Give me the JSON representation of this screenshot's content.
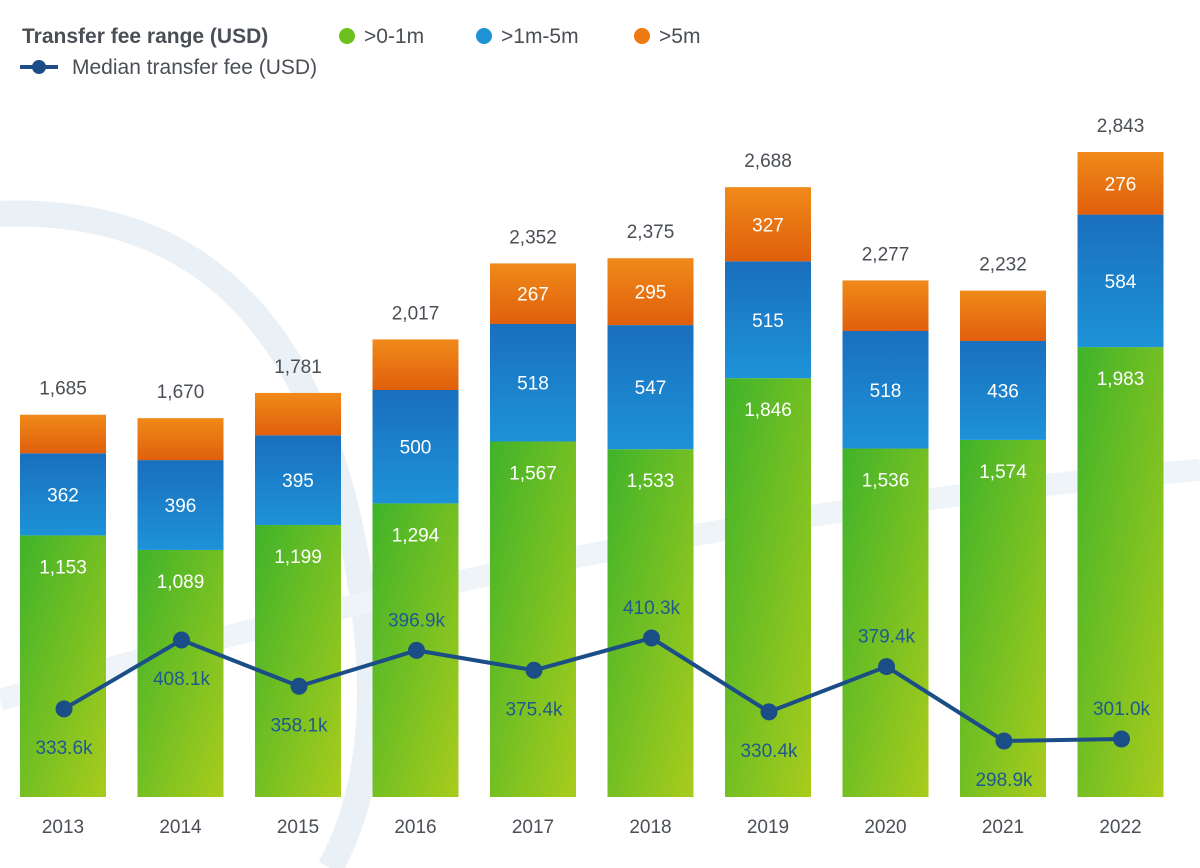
{
  "legend": {
    "title": "Transfer fee range (USD)",
    "items": [
      {
        "label": ">0-1m",
        "color": "#6cc11f"
      },
      {
        "label": ">1m-5m",
        "color": "#1e93d6"
      },
      {
        "label": ">5m",
        "color": "#ee7a12"
      }
    ],
    "line_label": "Median transfer fee (USD)",
    "line_color": "#1b4e86"
  },
  "chart_data": {
    "type": "bar",
    "stacked": true,
    "categories": [
      "2013",
      "2014",
      "2015",
      "2016",
      "2017",
      "2018",
      "2019",
      "2020",
      "2021",
      "2022"
    ],
    "series": [
      {
        "name": ">0-1m",
        "values": [
          1153,
          1089,
          1199,
          1294,
          1567,
          1533,
          1846,
          1536,
          1574,
          1983
        ],
        "labels": [
          "1,153",
          "1,089",
          "1,199",
          "1,294",
          "1,567",
          "1,533",
          "1,846",
          "1,536",
          "1,574",
          "1,983"
        ]
      },
      {
        "name": ">1m-5m",
        "values": [
          362,
          396,
          395,
          500,
          518,
          547,
          515,
          518,
          436,
          584
        ],
        "labels": [
          "362",
          "396",
          "395",
          "500",
          "518",
          "547",
          "515",
          "518",
          "436",
          "584"
        ]
      },
      {
        "name": ">5m",
        "values": [
          170,
          185,
          187,
          223,
          267,
          295,
          327,
          223,
          222,
          276
        ],
        "labels": [
          "",
          "",
          "",
          "",
          "267",
          "295",
          "327",
          "",
          "",
          "276"
        ]
      }
    ],
    "totals": [
      "1,685",
      "1,670",
      "1,781",
      "2,017",
      "2,352",
      "2,375",
      "2,688",
      "2,277",
      "2,232",
      "2,843"
    ],
    "total_values": [
      1685,
      1670,
      1781,
      2017,
      2352,
      2375,
      2688,
      2277,
      2232,
      2843
    ],
    "ylim": [
      0,
      2843
    ],
    "line_series": {
      "name": "Median transfer fee (USD)",
      "values": [
        333.6,
        408.1,
        358.1,
        396.9,
        375.4,
        410.3,
        330.4,
        379.4,
        298.9,
        301.0
      ],
      "labels": [
        "333.6k",
        "408.1k",
        "358.1k",
        "396.9k",
        "375.4k",
        "410.3k",
        "330.4k",
        "379.4k",
        "298.9k",
        "301.0k"
      ],
      "label_positions": [
        "below",
        "below",
        "below",
        "above",
        "below",
        "above",
        "below",
        "above",
        "below",
        "above"
      ]
    },
    "grid": false,
    "legend_position": "top-left"
  }
}
